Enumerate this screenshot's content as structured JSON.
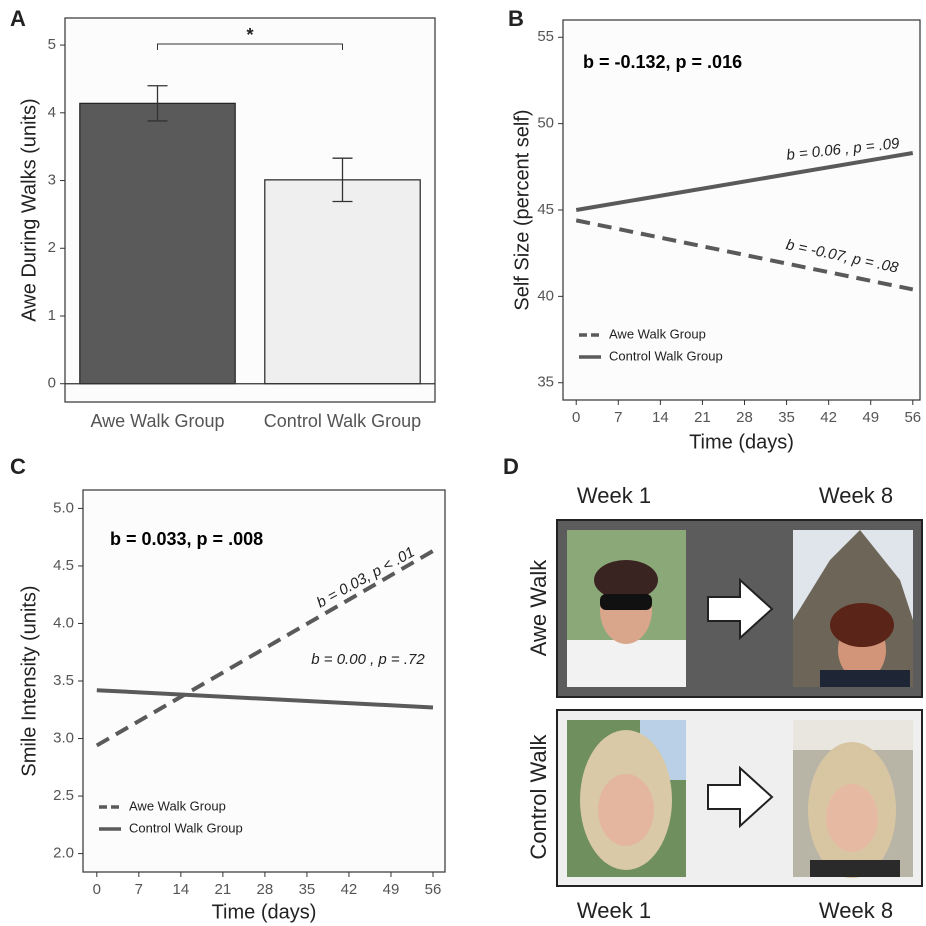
{
  "panels": [
    "A",
    "B",
    "C",
    "D"
  ],
  "chart_data": [
    {
      "type": "bar",
      "y_label": "Awe During Walks (units)",
      "categories": [
        "Awe Walk Group",
        "Control Walk Group"
      ],
      "values": [
        4.14,
        3.01
      ],
      "errors": [
        0.26,
        0.32
      ],
      "colors": [
        "#5a5a5a",
        "#efefef"
      ],
      "ylim": [
        -0.27,
        5.4
      ],
      "yticks": [
        0,
        1,
        2,
        3,
        4,
        5
      ],
      "annotations": [
        "*"
      ]
    },
    {
      "type": "line",
      "x_label": "Time (days)",
      "y_label": "Self Size (percent self)",
      "x": [
        0,
        56
      ],
      "series": [
        {
          "name": "Awe Walk Group",
          "color": "#5a5a5a",
          "dash": true,
          "values": [
            44.4,
            40.4
          ]
        },
        {
          "name": "Control Walk Group",
          "color": "#5a5a5a",
          "dash": false,
          "values": [
            45.0,
            48.3
          ]
        }
      ],
      "xlim": [
        -2.2,
        57.2
      ],
      "xticks": [
        0,
        7,
        14,
        21,
        28,
        35,
        42,
        49,
        56
      ],
      "ylim": [
        34,
        56
      ],
      "yticks": [
        35,
        40,
        45,
        50,
        55
      ],
      "legend": "bottom-left",
      "annotations": [
        "b = -0.132, p = .016",
        "b = 0.06 , p = .09",
        "b = -0.07, p = .08"
      ]
    },
    {
      "type": "line",
      "x_label": "Time (days)",
      "y_label": "Smile Intensity (units)",
      "x": [
        0,
        56
      ],
      "series": [
        {
          "name": "Awe Walk Group",
          "color": "#5a5a5a",
          "dash": true,
          "values": [
            2.94,
            4.63
          ]
        },
        {
          "name": "Control Walk Group",
          "color": "#5a5a5a",
          "dash": false,
          "values": [
            3.42,
            3.27
          ]
        }
      ],
      "xlim": [
        -2.3,
        58
      ],
      "xticks": [
        0,
        7,
        14,
        21,
        28,
        35,
        42,
        49,
        56
      ],
      "ylim": [
        1.84,
        5.16
      ],
      "yticks": [
        {
          "value": 2,
          "label": "2.0"
        },
        2.5,
        {
          "value": 3,
          "label": "3.0"
        },
        3.5,
        {
          "value": 4,
          "label": "4.0"
        },
        4.5,
        {
          "value": 5,
          "label": "5.0"
        }
      ],
      "legend": "bottom-left",
      "annotations": [
        "b = 0.033, p = .008",
        "b = 0.03, p < .01",
        "b = 0.00 , p = .72"
      ]
    }
  ],
  "panel_d": {
    "col_top": [
      "Week 1",
      "Week 8"
    ],
    "rows": [
      "Awe Walk",
      "Control Walk"
    ],
    "col_bottom": [
      "Week 1",
      "Week 8"
    ]
  }
}
